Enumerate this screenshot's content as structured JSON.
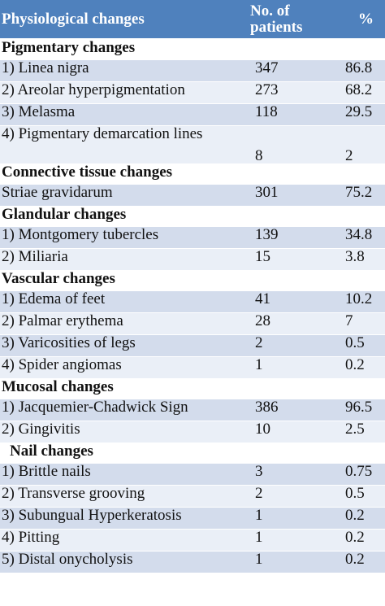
{
  "table": {
    "headers": {
      "col1": "Physiological changes",
      "col2": "No. of patients",
      "col3": "%"
    },
    "sections": [
      {
        "title": "Pigmentary changes",
        "rows": [
          {
            "label": "1) Linea nigra",
            "n": "347",
            "pct": "86.8"
          },
          {
            "label": "2) Areolar hyperpigmentation",
            "n": "273",
            "pct": "68.2"
          },
          {
            "label": "3) Melasma",
            "n": "118",
            "pct": "29.5"
          },
          {
            "label": "4) Pigmentary demarcation lines",
            "n": "8",
            "pct": "2"
          }
        ]
      },
      {
        "title": "Connective tissue changes",
        "rows": [
          {
            "label": "Striae gravidarum",
            "n": "301",
            "pct": "75.2"
          }
        ]
      },
      {
        "title": "Glandular changes",
        "rows": [
          {
            "label": "1) Montgomery tubercles",
            "n": "139",
            "pct": "34.8"
          },
          {
            "label": "2) Miliaria",
            "n": "15",
            "pct": "3.8"
          }
        ]
      },
      {
        "title": "Vascular changes",
        "rows": [
          {
            "label": "1) Edema of feet",
            "n": "41",
            "pct": "10.2"
          },
          {
            "label": "2) Palmar erythema",
            "n": "28",
            "pct": "7"
          },
          {
            "label": "3) Varicosities of legs",
            "n": "2",
            "pct": "0.5"
          },
          {
            "label": "4) Spider angiomas",
            "n": "1",
            "pct": "0.2"
          }
        ]
      },
      {
        "title": "Mucosal changes",
        "rows": [
          {
            "label": "1) Jacquemier-Chadwick Sign",
            "n": "386",
            "pct": "96.5"
          },
          {
            "label": "2) Gingivitis",
            "n": "10",
            "pct": "2.5"
          }
        ]
      },
      {
        "title": "Nail changes",
        "rows": [
          {
            "label": "1) Brittle nails",
            "n": "3",
            "pct": "0.75"
          },
          {
            "label": "2) Transverse grooving",
            "n": "2",
            "pct": "0.5"
          },
          {
            "label": "3) Subungual Hyperkeratosis",
            "n": "1",
            "pct": "0.2"
          },
          {
            "label": "4) Pitting",
            "n": "1",
            "pct": "0.2"
          },
          {
            "label": "5) Distal onycholysis",
            "n": "1",
            "pct": "0.2"
          }
        ]
      }
    ]
  }
}
